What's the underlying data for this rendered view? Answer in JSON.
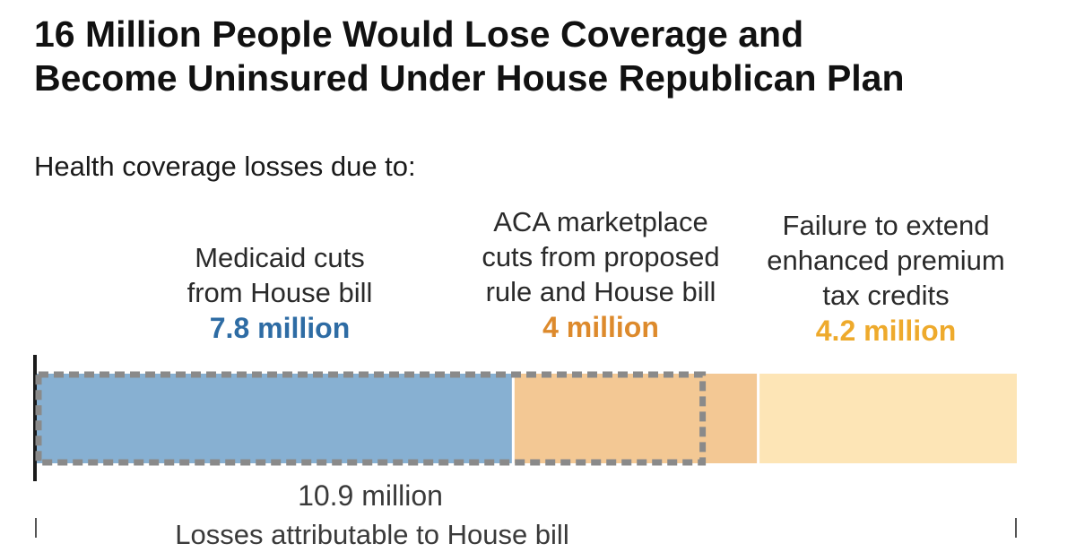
{
  "header": {
    "title_lines": [
      "16 Million People Would Lose Coverage and",
      "Become Uninsured Under House Republican Plan"
    ],
    "subtitle": "Health coverage losses due to:"
  },
  "chart_data": {
    "type": "bar",
    "orientation": "horizontal-stacked",
    "title": "16 Million People Would Lose Coverage and Become Uninsured Under House Republican Plan",
    "subtitle": "Health coverage losses due to:",
    "unit": "million",
    "total": 16,
    "segments": [
      {
        "label_lines": [
          "Medicaid cuts",
          "from House bill"
        ],
        "label": "Medicaid cuts from House bill",
        "value": 7.8,
        "value_label": "7.8 million",
        "color": "#87b0d2",
        "label_color": "#2e6ca4"
      },
      {
        "label_lines": [
          "ACA marketplace",
          "cuts from proposed",
          "rule and House bill"
        ],
        "label": "ACA marketplace cuts from proposed rule and House bill",
        "value": 4,
        "value_label": "4 million",
        "color": "#f3c894",
        "label_color": "#dd8a2c"
      },
      {
        "label_lines": [
          "Failure to extend",
          "enhanced premium",
          "tax credits"
        ],
        "label": "Failure to extend enhanced premium tax credits",
        "value": 4.2,
        "value_label": "4.2 million",
        "color": "#fde5b6",
        "label_color": "#eeaa2c"
      }
    ],
    "house_bill_split": {
      "marketplace_house_bill_value": 3.1,
      "marketplace_house_bill_color": "#f3c894",
      "marketplace_rule_color": "#efc392"
    },
    "bracket": {
      "value": 10.9,
      "value_label": "10.9 million",
      "caption": "Losses attributable to House bill",
      "border_color": "#8a8a8a"
    },
    "axis_color": "#1a1a1a",
    "grid": false,
    "legend": "none"
  }
}
